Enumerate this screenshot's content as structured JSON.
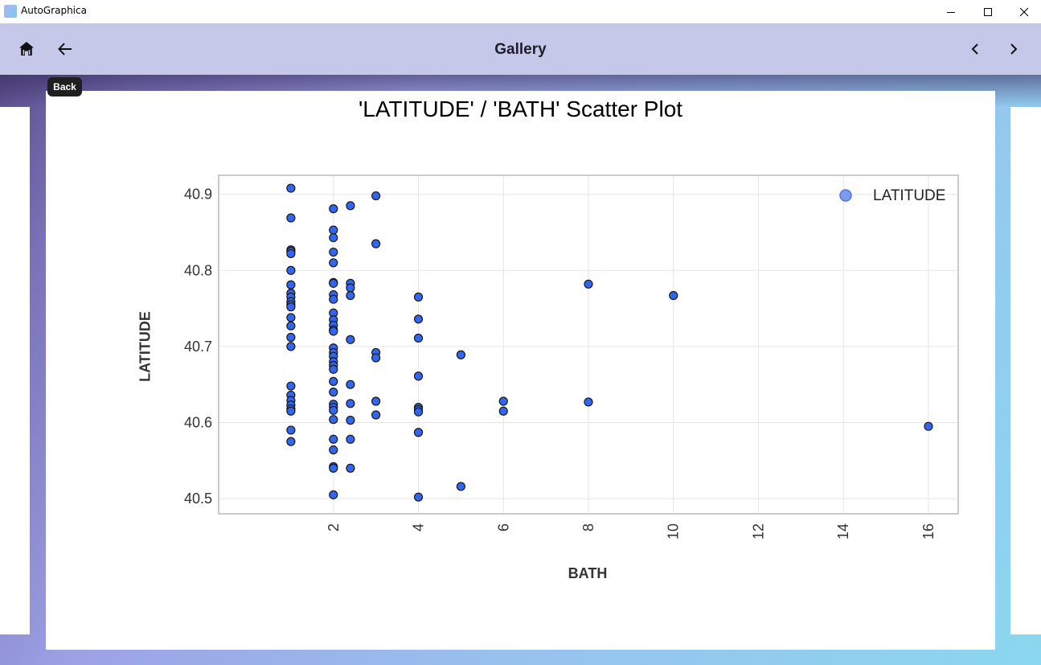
{
  "window": {
    "app_title": "AutoGraphica"
  },
  "appbar": {
    "title": "Gallery"
  },
  "tooltip": {
    "back": "Back"
  },
  "icons": {
    "app": "app-icon",
    "minimize": "minimize-icon",
    "maximize": "maximize-icon",
    "close": "close-icon",
    "home": "home-icon",
    "back": "arrow-left-icon",
    "prev": "chevron-left-icon",
    "next": "chevron-right-icon"
  },
  "colors": {
    "point_fill": "#3366ee",
    "point_edge": "#1a1a1a",
    "legend_point": "#7c9af0",
    "appbar": "#c5c8e8"
  },
  "chart_data": {
    "type": "scatter",
    "title": "'LATITUDE' / 'BATH'  Scatter Plot",
    "xlabel": "BATH",
    "ylabel": "LATITUDE",
    "xlim": [
      -0.7,
      16.7
    ],
    "ylim": [
      40.48,
      40.925
    ],
    "xticks": [
      "2",
      "4",
      "6",
      "8",
      "10",
      "12",
      "14",
      "16"
    ],
    "yticks": [
      "40.5",
      "40.6",
      "40.7",
      "40.8",
      "40.9"
    ],
    "legend": {
      "position": "top-right",
      "entries": [
        "LATITUDE"
      ]
    },
    "grid": true,
    "series": [
      {
        "name": "LATITUDE",
        "points": [
          [
            1,
            40.908
          ],
          [
            1,
            40.869
          ],
          [
            1,
            40.827
          ],
          [
            1,
            40.825
          ],
          [
            1,
            40.822
          ],
          [
            1,
            40.8
          ],
          [
            1,
            40.781
          ],
          [
            1,
            40.77
          ],
          [
            1,
            40.765
          ],
          [
            1,
            40.759
          ],
          [
            1,
            40.755
          ],
          [
            1,
            40.752
          ],
          [
            1,
            40.738
          ],
          [
            1,
            40.727
          ],
          [
            1,
            40.712
          ],
          [
            1,
            40.7
          ],
          [
            1,
            40.648
          ],
          [
            1,
            40.636
          ],
          [
            1,
            40.629
          ],
          [
            1,
            40.623
          ],
          [
            1,
            40.618
          ],
          [
            1,
            40.615
          ],
          [
            1,
            40.59
          ],
          [
            1,
            40.575
          ],
          [
            2,
            40.881
          ],
          [
            2,
            40.853
          ],
          [
            2,
            40.843
          ],
          [
            2,
            40.824
          ],
          [
            2,
            40.81
          ],
          [
            2,
            40.784
          ],
          [
            2,
            40.783
          ],
          [
            2,
            40.768
          ],
          [
            2,
            40.762
          ],
          [
            2,
            40.744
          ],
          [
            2,
            40.735
          ],
          [
            2,
            40.728
          ],
          [
            2,
            40.722
          ],
          [
            2,
            40.72
          ],
          [
            2,
            40.698
          ],
          [
            2,
            40.692
          ],
          [
            2,
            40.687
          ],
          [
            2,
            40.68
          ],
          [
            2,
            40.675
          ],
          [
            2,
            40.67
          ],
          [
            2,
            40.654
          ],
          [
            2,
            40.64
          ],
          [
            2,
            40.624
          ],
          [
            2,
            40.62
          ],
          [
            2,
            40.616
          ],
          [
            2,
            40.604
          ],
          [
            2,
            40.578
          ],
          [
            2,
            40.564
          ],
          [
            2,
            40.542
          ],
          [
            2,
            40.54
          ],
          [
            2,
            40.505
          ],
          [
            2.4,
            40.885
          ],
          [
            2.4,
            40.783
          ],
          [
            2.4,
            40.777
          ],
          [
            2.4,
            40.767
          ],
          [
            2.4,
            40.709
          ],
          [
            2.4,
            40.65
          ],
          [
            2.4,
            40.625
          ],
          [
            2.4,
            40.603
          ],
          [
            2.4,
            40.578
          ],
          [
            2.4,
            40.54
          ],
          [
            3,
            40.898
          ],
          [
            3,
            40.835
          ],
          [
            3,
            40.692
          ],
          [
            3,
            40.685
          ],
          [
            3,
            40.628
          ],
          [
            3,
            40.61
          ],
          [
            4,
            40.765
          ],
          [
            4,
            40.736
          ],
          [
            4,
            40.711
          ],
          [
            4,
            40.661
          ],
          [
            4,
            40.62
          ],
          [
            4,
            40.617
          ],
          [
            4,
            40.614
          ],
          [
            4,
            40.587
          ],
          [
            4,
            40.502
          ],
          [
            5,
            40.689
          ],
          [
            5,
            40.516
          ],
          [
            6,
            40.628
          ],
          [
            6,
            40.615
          ],
          [
            8,
            40.782
          ],
          [
            8,
            40.627
          ],
          [
            10,
            40.767
          ],
          [
            16,
            40.595
          ]
        ]
      }
    ]
  }
}
